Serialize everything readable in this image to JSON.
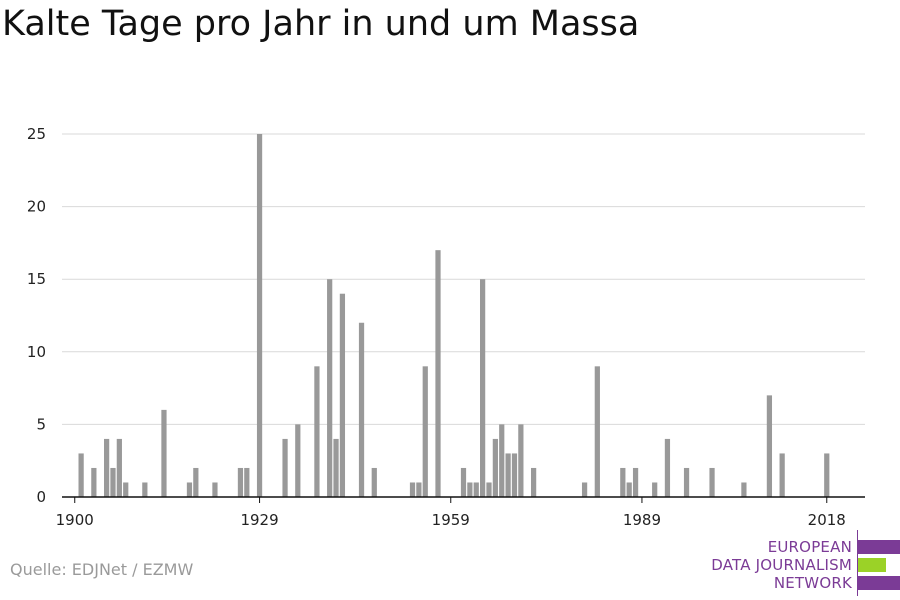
{
  "title": "Kalte Tage pro Jahr in und um Massa",
  "source": "Quelle: EDJNet / EZMW",
  "logo": {
    "line1": "EUROPEAN",
    "line2": "DATA JOURNALISM",
    "line3": "NETWORK",
    "colors": {
      "purple": "#7b3b96",
      "green": "#9bd227"
    }
  },
  "chart_data": {
    "type": "bar",
    "title": "Kalte Tage pro Jahr in und um Massa",
    "xlabel": "",
    "ylabel": "",
    "bar_color": "#999999",
    "grid": true,
    "xlim": [
      1898,
      2024
    ],
    "ylim": [
      0,
      25
    ],
    "yticks": [
      0,
      5,
      10,
      15,
      20,
      25
    ],
    "xticks": [
      1900,
      1929,
      1959,
      1989,
      2018
    ],
    "x": [
      1901,
      1903,
      1905,
      1906,
      1907,
      1908,
      1911,
      1914,
      1918,
      1919,
      1922,
      1926,
      1927,
      1929,
      1933,
      1935,
      1938,
      1940,
      1941,
      1942,
      1945,
      1947,
      1953,
      1954,
      1955,
      1957,
      1961,
      1962,
      1963,
      1964,
      1965,
      1966,
      1967,
      1968,
      1969,
      1970,
      1972,
      1980,
      1982,
      1986,
      1987,
      1988,
      1991,
      1993,
      1996,
      2000,
      2005,
      2009,
      2011,
      2018
    ],
    "values": [
      3,
      2,
      4,
      2,
      4,
      1,
      1,
      6,
      1,
      2,
      1,
      2,
      2,
      25,
      4,
      5,
      9,
      15,
      4,
      14,
      12,
      2,
      1,
      1,
      9,
      17,
      2,
      1,
      1,
      15,
      1,
      4,
      5,
      3,
      3,
      5,
      2,
      1,
      9,
      2,
      1,
      2,
      1,
      4,
      2,
      2,
      1,
      7,
      3,
      3
    ]
  }
}
